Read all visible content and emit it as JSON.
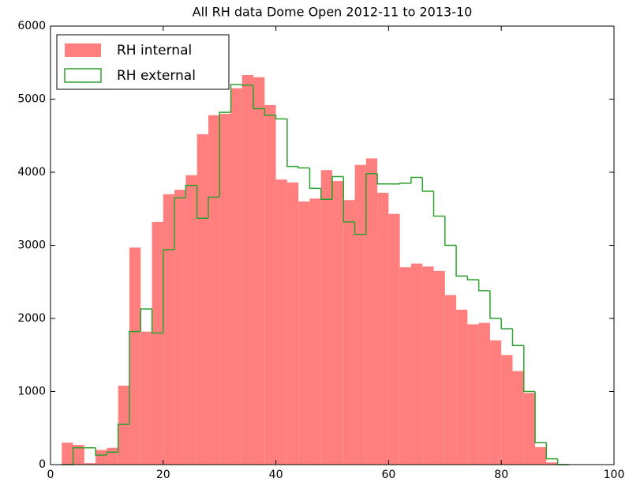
{
  "chart_data": {
    "type": "histogram",
    "title": "All RH data Dome Open 2012-11 to 2013-10",
    "bins": [
      2,
      4,
      6,
      8,
      10,
      12,
      14,
      16,
      18,
      20,
      22,
      24,
      26,
      28,
      30,
      32,
      34,
      36,
      38,
      40,
      42,
      44,
      46,
      48,
      50,
      52,
      54,
      56,
      58,
      60,
      62,
      64,
      66,
      68,
      70,
      72,
      74,
      76,
      78,
      80,
      82,
      84,
      86,
      88,
      90,
      92
    ],
    "series": [
      {
        "name": "RH internal",
        "color": "#ff7f7f",
        "histtype": "stepfilled",
        "values": [
          300,
          270,
          20,
          200,
          230,
          1080,
          2970,
          1820,
          3320,
          3700,
          3760,
          3960,
          4520,
          4780,
          4800,
          5150,
          5330,
          5300,
          4920,
          3900,
          3860,
          3600,
          3640,
          4030,
          3880,
          3620,
          4100,
          4190,
          3720,
          3430,
          2700,
          2750,
          2710,
          2650,
          2320,
          2120,
          1920,
          1940,
          1700,
          1500,
          1280,
          980,
          240,
          30,
          0
        ]
      },
      {
        "name": "RH external",
        "color": "#2ca02c",
        "histtype": "step",
        "values": [
          0,
          230,
          230,
          130,
          170,
          550,
          1820,
          2130,
          1800,
          2940,
          3650,
          3820,
          3370,
          3660,
          4820,
          5200,
          5190,
          4870,
          4780,
          4730,
          4080,
          4060,
          3780,
          3630,
          3940,
          3320,
          3150,
          3980,
          3840,
          3840,
          3850,
          3930,
          3740,
          3400,
          3000,
          2580,
          2530,
          2380,
          2000,
          1860,
          1630,
          1000,
          300,
          80,
          0
        ]
      }
    ],
    "xlim": [
      0,
      100
    ],
    "xticks": [
      0,
      20,
      40,
      60,
      80,
      100
    ],
    "ylim": [
      0,
      6000
    ],
    "yticks": [
      0,
      1000,
      2000,
      3000,
      4000,
      5000,
      6000
    ],
    "legend": "upper left"
  }
}
